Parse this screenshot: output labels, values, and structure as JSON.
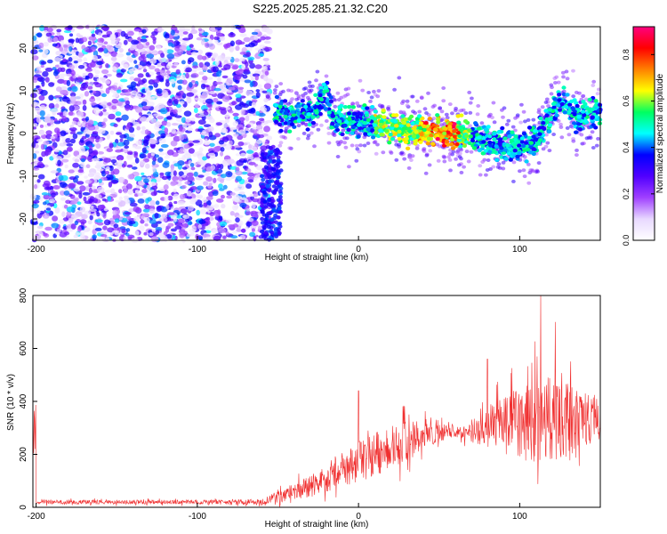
{
  "title": "S225.2025.285.21.32.C20",
  "chart_data": [
    {
      "type": "heatmap",
      "xlabel": "Height of straight line (km)",
      "ylabel": "Frequency (Hz)",
      "xlim": [
        -202,
        150
      ],
      "ylim": [
        -25,
        25
      ],
      "xticks": [
        -200,
        -100,
        0,
        100
      ],
      "yticks": [
        -20,
        -10,
        0,
        10,
        20
      ],
      "colorbar": {
        "label": "Normalized spectral amplitude",
        "range": [
          0.0,
          0.92
        ],
        "ticks": [
          0.0,
          0.2,
          0.4,
          0.6,
          0.8
        ],
        "colors": [
          "#ffffff",
          "#e8d8ff",
          "#a040ff",
          "#5000ff",
          "#0000ff",
          "#00ffff",
          "#00ff60",
          "#ffff00",
          "#ff8000",
          "#ff0000",
          "#ff0080"
        ]
      },
      "ridge_frequency_hz": [
        {
          "x": -50,
          "y": 5
        },
        {
          "x": -40,
          "y": 4
        },
        {
          "x": -30,
          "y": 5
        },
        {
          "x": -20,
          "y": 9
        },
        {
          "x": -15,
          "y": 3
        },
        {
          "x": -5,
          "y": 3
        },
        {
          "x": 10,
          "y": 2
        },
        {
          "x": 30,
          "y": 1
        },
        {
          "x": 50,
          "y": 0
        },
        {
          "x": 70,
          "y": 0
        },
        {
          "x": 80,
          "y": -2
        },
        {
          "x": 95,
          "y": -3
        },
        {
          "x": 110,
          "y": -2
        },
        {
          "x": 115,
          "y": 1
        },
        {
          "x": 125,
          "y": 8
        },
        {
          "x": 135,
          "y": 4
        },
        {
          "x": 150,
          "y": 5
        }
      ]
    },
    {
      "type": "line",
      "xlabel": "Height of straight line (km)",
      "ylabel": "SNR (10 * v/v)",
      "xlim": [
        -202,
        150
      ],
      "ylim": [
        0,
        800
      ],
      "xticks": [
        -200,
        -100,
        0,
        100
      ],
      "yticks": [
        0,
        200,
        400,
        600,
        800
      ],
      "color": "#f03030",
      "series": [
        {
          "name": "SNR",
          "x": [
            -200,
            -150,
            -100,
            -60,
            -50,
            -40,
            -30,
            -20,
            -10,
            0,
            10,
            20,
            30,
            40,
            50,
            60,
            70,
            80,
            90,
            100,
            110,
            120,
            130,
            140,
            150
          ],
          "y": [
            20,
            20,
            20,
            20,
            40,
            60,
            80,
            110,
            140,
            170,
            200,
            230,
            250,
            270,
            280,
            290,
            280,
            300,
            310,
            320,
            330,
            340,
            330,
            340,
            340
          ],
          "spread": [
            15,
            15,
            15,
            20,
            40,
            60,
            80,
            100,
            120,
            140,
            150,
            150,
            140,
            100,
            60,
            50,
            60,
            150,
            200,
            250,
            300,
            300,
            250,
            200,
            150
          ],
          "peaks": [
            {
              "x": 113,
              "y": 800
            },
            {
              "x": 122,
              "y": 700
            },
            {
              "x": 80,
              "y": 560
            },
            {
              "x": 0,
              "y": 440
            }
          ]
        }
      ]
    }
  ]
}
